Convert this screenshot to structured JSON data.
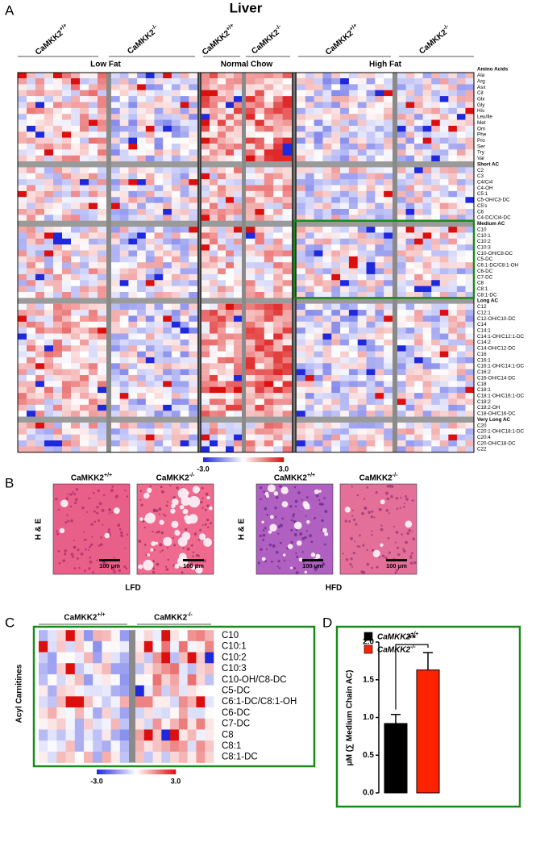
{
  "panel_a": {
    "letter": "A",
    "title": "Liver",
    "genotypes": [
      "CaMKK2+/+",
      "CaMKK2-/-",
      "CaMKK2+/+",
      "CaMKK2-/-",
      "CaMKK2+/+",
      "CaMKK2-/-"
    ],
    "diets": [
      "Low Fat",
      "Normal Chow",
      "High Fat"
    ],
    "groups": [
      {
        "header": "Amino Acids",
        "rows": [
          "Ala",
          "Arg",
          "Asx",
          "Cit",
          "Glx",
          "Gly",
          "His",
          "Leu/Ile",
          "Met",
          "Orn",
          "Phe",
          "Pro",
          "Ser",
          "Try",
          "Val"
        ]
      },
      {
        "header": "Short AC",
        "rows": [
          "C2",
          "C3",
          "C4/Ci4",
          "C4-OH",
          "C5:1",
          "C5-OH/C3-DC",
          "C5's",
          "C6",
          "C4-DC/Ci4-DC"
        ]
      },
      {
        "header": "Medium AC",
        "rows": [
          "C10",
          "C10:1",
          "C10:2",
          "C10:3",
          "C10-OH/C8-DC",
          "C5-DC",
          "C6:1-DC/C8:1-OH",
          "C6-DC",
          "C7-DC",
          "C8",
          "C8:1",
          "C8:1-DC"
        ]
      },
      {
        "header": "Long AC",
        "rows": [
          "C12",
          "C12:1",
          "C12-OH/C10-DC",
          "C14",
          "C14:1",
          "C14:1-OH/C12:1-DC",
          "C14:2",
          "C14-OH/C12-DC",
          "C16",
          "C16:1",
          "C16:1-OH/C14:1-DC",
          "C16:2",
          "C16-OH/C14-DC",
          "C18",
          "C18:1",
          "C18:1-OH/C16:1-DC",
          "C18:2",
          "C18:2-OH",
          "C18-OH/C16-DC"
        ]
      },
      {
        "header": "Very Long AC",
        "rows": [
          "C20",
          "C20:1-OH/C18:1-DC",
          "C20:4",
          "C20-OH/C18-DC",
          "C22"
        ]
      }
    ],
    "scale_labels": [
      {
        "value": -3,
        "label": "-3.0"
      },
      {
        "value": 3,
        "label": "3.0"
      }
    ]
  },
  "panel_b": {
    "letter": "B",
    "stain": "H & E",
    "scale_bar": "100 μm",
    "images": [
      "CaMKK2+/+",
      "CaMKK2-/-",
      "CaMKK2+/+",
      "CaMKK2-/-"
    ],
    "diets": [
      "LFD",
      "HFD"
    ]
  },
  "panel_c": {
    "letter": "C",
    "ylabel": "Acyl Carnitines",
    "genotypes": [
      "CaMKK2+/+",
      "CaMKK2-/-"
    ],
    "rows": [
      "C10",
      "C10:1",
      "C10:2",
      "C10:3",
      "C10-OH/C8-DC",
      "C5-DC",
      "C6:1-DC/C8:1-OH",
      "C6-DC",
      "C7-DC",
      "C8",
      "C8:1",
      "C8:1-DC"
    ],
    "scale_labels": [
      {
        "value": -3,
        "label": "-3.0"
      },
      {
        "value": 3,
        "label": "3.0"
      }
    ]
  },
  "chart_data": {
    "type": "bar",
    "letter": "D",
    "ylabel": "μM (∑ Medium Chain AC)",
    "series": [
      {
        "name": "CaMKK2+/+",
        "color": "#000000",
        "values": [
          0.92
        ],
        "errors": [
          0.12
        ]
      },
      {
        "name": "CaMKK2-/-",
        "color": "#ff2200",
        "values": [
          1.63
        ],
        "errors": [
          0.23
        ]
      }
    ],
    "ylim": [
      0,
      2
    ],
    "yticks": [
      {
        "value": 0,
        "label": "0.0"
      },
      0.5,
      {
        "value": 1,
        "label": "1.0"
      },
      1.5,
      {
        "value": 2,
        "label": "2.0"
      }
    ],
    "annotation": "**"
  }
}
